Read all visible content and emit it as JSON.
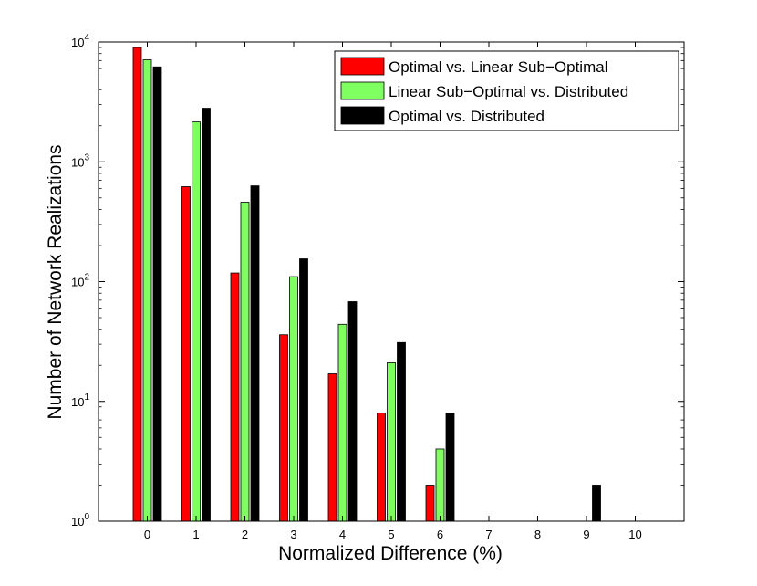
{
  "chart_data": {
    "type": "bar",
    "xlabel": "Normalized Difference (%)",
    "ylabel": "Number of Network Realizations",
    "yscale": "log",
    "ylim": [
      1,
      10000
    ],
    "y_ticks": [
      {
        "value": 1,
        "base": "10",
        "exp": "0"
      },
      {
        "value": 10,
        "base": "10",
        "exp": "1"
      },
      {
        "value": 100,
        "base": "10",
        "exp": "2"
      },
      {
        "value": 1000,
        "base": "10",
        "exp": "3"
      },
      {
        "value": 10000,
        "base": "10",
        "exp": "4"
      }
    ],
    "categories": [
      "0",
      "1",
      "2",
      "3",
      "4",
      "5",
      "6",
      "7",
      "8",
      "9",
      "10"
    ],
    "legend_position": "top-right",
    "grid": false,
    "series": [
      {
        "name": "Optimal vs. Linear Sub−Optimal",
        "color": "#ff0000",
        "values": [
          9000,
          620,
          118,
          36,
          17,
          8,
          2,
          0,
          0,
          0,
          0
        ]
      },
      {
        "name": "Linear Sub−Optimal vs. Distributed",
        "color": "#80ff60",
        "values": [
          7100,
          2150,
          460,
          110,
          44,
          21,
          4,
          0,
          0,
          0,
          0
        ]
      },
      {
        "name": "Optimal vs. Distributed",
        "color": "#000000",
        "values": [
          6200,
          2800,
          630,
          155,
          68,
          31,
          8,
          0,
          0,
          2,
          0
        ]
      }
    ]
  }
}
